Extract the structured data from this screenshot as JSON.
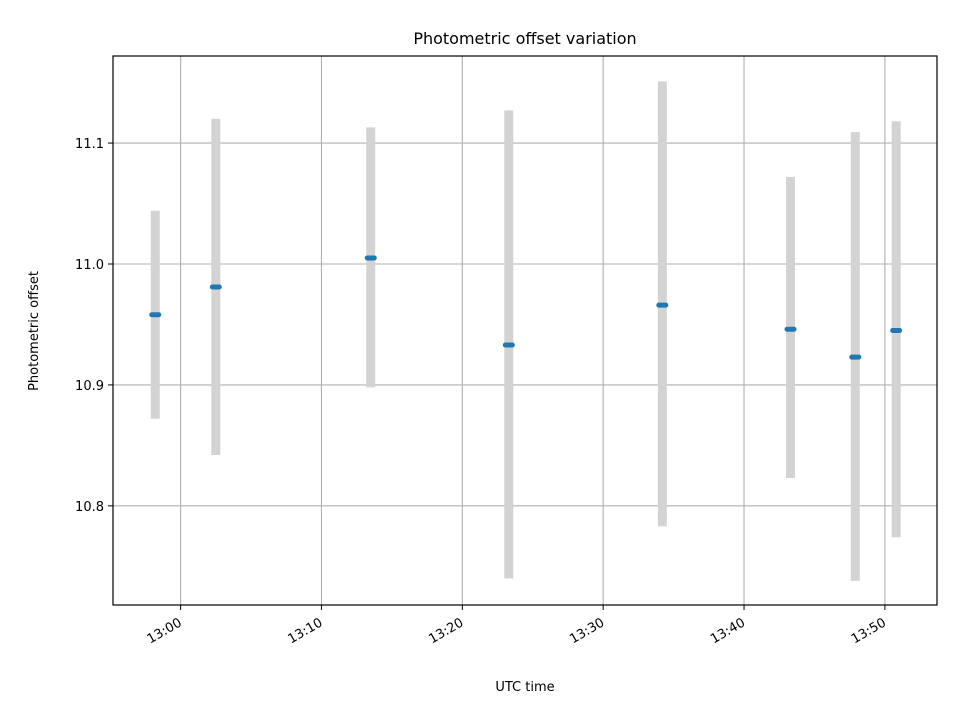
{
  "chart_data": {
    "type": "scatter",
    "title": "Photometric offset variation",
    "xlabel": "UTC time",
    "ylabel": "Photometric offset",
    "x_ticks": [
      "13:00",
      "13:10",
      "13:20",
      "13:30",
      "13:40",
      "13:50"
    ],
    "y_ticks": [
      "10.8",
      "10.9",
      "11.0",
      "11.1"
    ],
    "xlim": [
      "12:55:12",
      "13:53:42"
    ],
    "ylim": [
      10.718,
      11.172
    ],
    "grid": true,
    "points": [
      {
        "x": "12:58:12",
        "y": 10.958,
        "err_low": 10.872,
        "err_high": 11.044
      },
      {
        "x": "13:02:30",
        "y": 10.981,
        "err_low": 10.842,
        "err_high": 11.12
      },
      {
        "x": "13:13:30",
        "y": 11.005,
        "err_low": 10.898,
        "err_high": 11.113
      },
      {
        "x": "13:23:18",
        "y": 10.933,
        "err_low": 10.74,
        "err_high": 11.127
      },
      {
        "x": "13:34:12",
        "y": 10.966,
        "err_low": 10.783,
        "err_high": 11.151
      },
      {
        "x": "13:43:18",
        "y": 10.946,
        "err_low": 10.823,
        "err_high": 11.072
      },
      {
        "x": "13:47:54",
        "y": 10.923,
        "err_low": 10.738,
        "err_high": 11.109
      },
      {
        "x": "13:50:48",
        "y": 10.945,
        "err_low": 10.774,
        "err_high": 11.118
      }
    ],
    "colors": {
      "point": "#1f77b4",
      "errorbar": "#d3d3d3",
      "grid": "#b0b0b0",
      "axis": "#000000"
    }
  }
}
